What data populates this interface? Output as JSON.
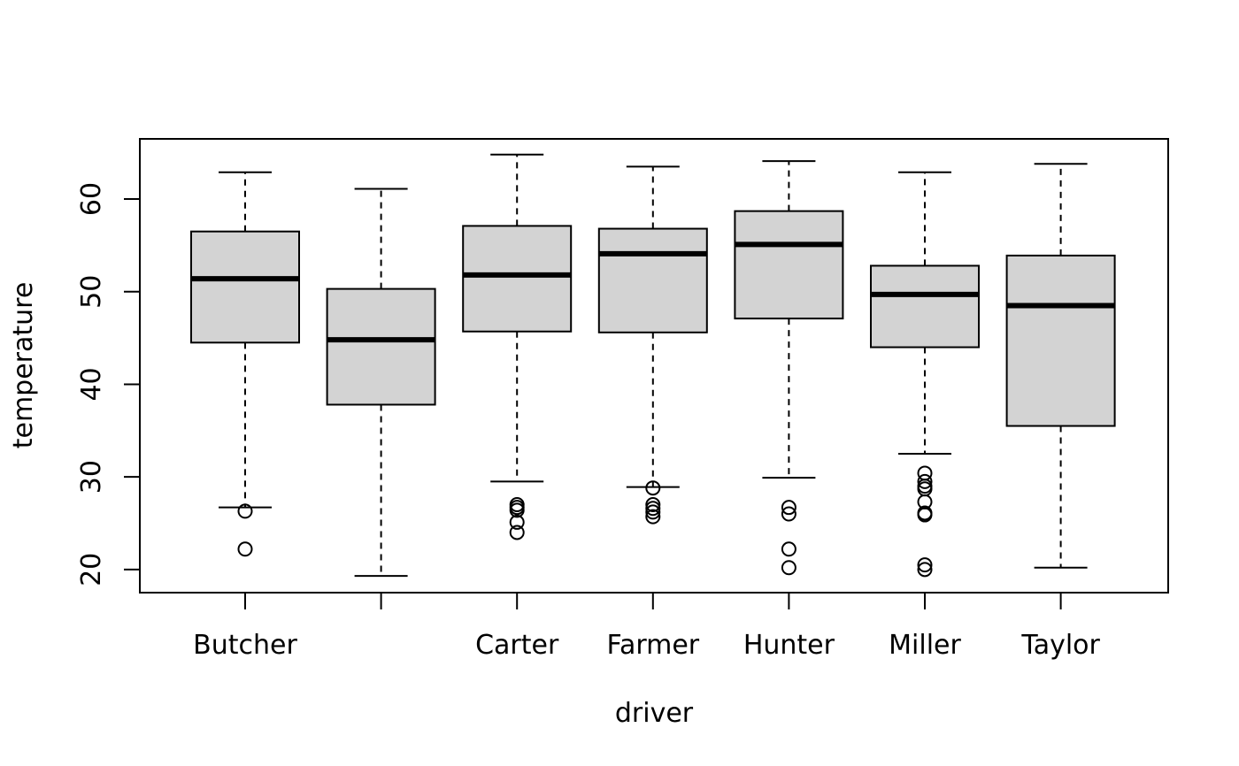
{
  "chart_data": {
    "type": "boxplot",
    "title": "",
    "xlabel": "driver",
    "ylabel": "temperature",
    "ylim": [
      17.5,
      66.5
    ],
    "yticks": [
      20,
      30,
      40,
      50,
      60
    ],
    "grid": false,
    "legend": "none",
    "box_fill": "#d3d3d3",
    "categories": [
      "Butcher",
      "",
      "Carter",
      "Farmer",
      "Hunter",
      "Miller",
      "Taylor"
    ],
    "boxes": [
      {
        "category": "Butcher",
        "whisker_low": 26.7,
        "q1": 44.5,
        "median": 51.4,
        "q3": 56.5,
        "whisker_high": 62.9,
        "outliers": [
          26.3,
          22.2
        ]
      },
      {
        "category": "",
        "whisker_low": 19.3,
        "q1": 37.8,
        "median": 44.8,
        "q3": 50.3,
        "whisker_high": 61.1,
        "outliers": []
      },
      {
        "category": "Carter",
        "whisker_low": 29.5,
        "q1": 45.7,
        "median": 51.8,
        "q3": 57.1,
        "whisker_high": 64.8,
        "outliers": [
          27.0,
          26.7,
          26.4,
          25.1,
          24.0
        ]
      },
      {
        "category": "Farmer",
        "whisker_low": 28.9,
        "q1": 45.6,
        "median": 54.1,
        "q3": 56.8,
        "whisker_high": 63.5,
        "outliers": [
          28.8,
          27.0,
          26.6,
          26.2,
          25.7
        ]
      },
      {
        "category": "Hunter",
        "whisker_low": 29.9,
        "q1": 47.1,
        "median": 55.1,
        "q3": 58.7,
        "whisker_high": 64.1,
        "outliers": [
          26.7,
          26.0,
          22.2,
          20.2
        ]
      },
      {
        "category": "Miller",
        "whisker_low": 32.5,
        "q1": 44.0,
        "median": 49.7,
        "q3": 52.8,
        "whisker_high": 62.9,
        "outliers": [
          30.4,
          29.5,
          29.0,
          28.7,
          27.3,
          26.1,
          25.9,
          20.5,
          20.0
        ]
      },
      {
        "category": "Taylor",
        "whisker_low": 20.2,
        "q1": 35.5,
        "median": 48.5,
        "q3": 53.9,
        "whisker_high": 63.8,
        "outliers": []
      }
    ]
  }
}
